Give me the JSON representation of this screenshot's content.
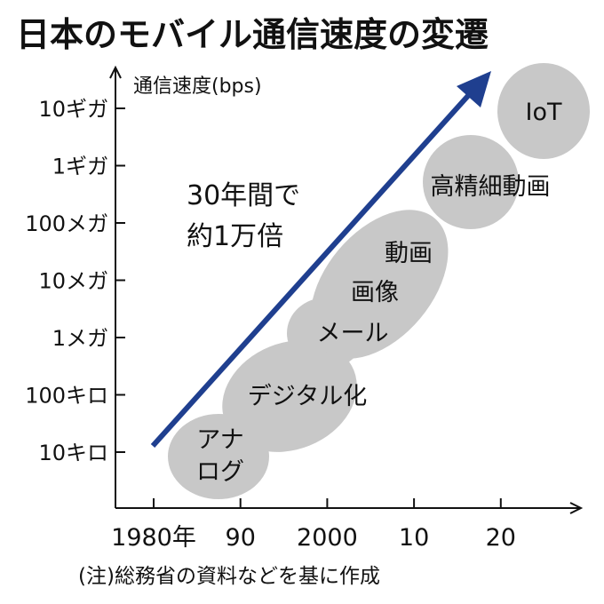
{
  "chart_data": {
    "type": "scatter",
    "title": "日本のモバイル通信速度の変遷",
    "ylabel": "通信速度(bps)",
    "y_scale": "log",
    "y_ticks": [
      "10キロ",
      "100キロ",
      "1メガ",
      "10メガ",
      "100メガ",
      "1ギガ",
      "10ギガ"
    ],
    "x_ticks": [
      "1980年",
      "90",
      "2000",
      "10",
      "20"
    ],
    "note": "(注)総務省の資料などを基に作成",
    "trend_annotation": [
      "30年間で",
      "約1万倍"
    ],
    "categories": [
      {
        "lines": [
          "アナ",
          "ログ"
        ],
        "year": 1985,
        "speed": "10キロ"
      },
      {
        "lines": [
          "デジタル化"
        ],
        "year": 1995,
        "speed": "100キロ"
      },
      {
        "lines": [
          "メール"
        ],
        "year": 2004,
        "speed": "1メガ"
      },
      {
        "lines": [
          "画像"
        ],
        "year": 2009,
        "speed": "10メガ"
      },
      {
        "lines": [
          "動画"
        ],
        "year": 2009,
        "speed": "10メガ"
      },
      {
        "lines": [
          "高精細動画"
        ],
        "year": 2016,
        "speed": "1ギガ"
      },
      {
        "lines": [
          "IoT"
        ],
        "year": 2025,
        "speed": "10ギガ"
      }
    ],
    "colors": {
      "arrow": "#1f3f8f",
      "blob": "#c8c8c8",
      "axis": "#111111"
    }
  }
}
